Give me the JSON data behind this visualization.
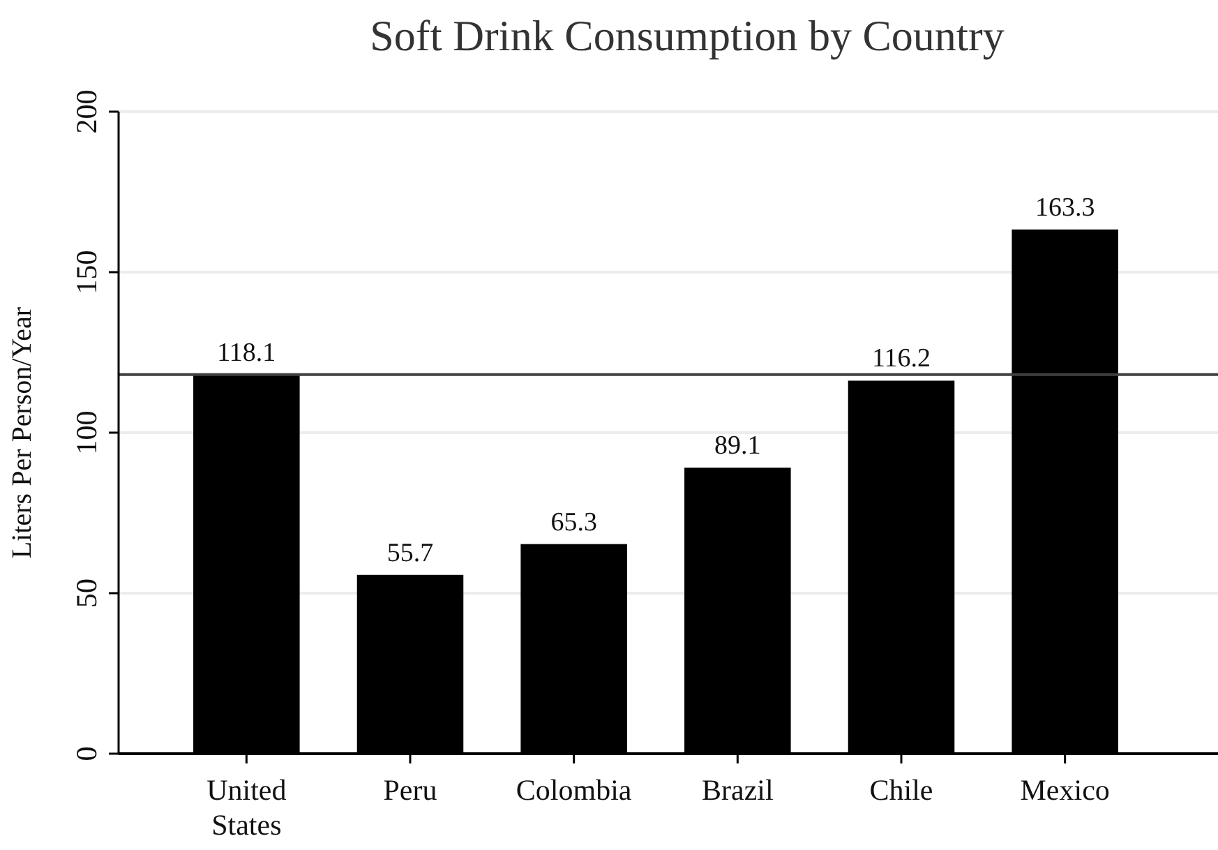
{
  "chart_data": {
    "type": "bar",
    "title": "Soft Drink Consumption by Country",
    "ylabel": "Liters Per Person/Year",
    "categories": [
      "United States",
      "Peru",
      "Colombia",
      "Brazil",
      "Chile",
      "Mexico"
    ],
    "values": [
      118.1,
      55.7,
      65.3,
      89.1,
      116.2,
      163.3
    ],
    "color": "#000000",
    "ylim": [
      0,
      200
    ],
    "yticks": [
      0,
      50,
      100,
      150,
      200
    ],
    "grid": "y",
    "data_labels": true,
    "ref_lines": [
      {
        "axis": "y",
        "value": 118.1,
        "color": "#404040"
      }
    ]
  }
}
